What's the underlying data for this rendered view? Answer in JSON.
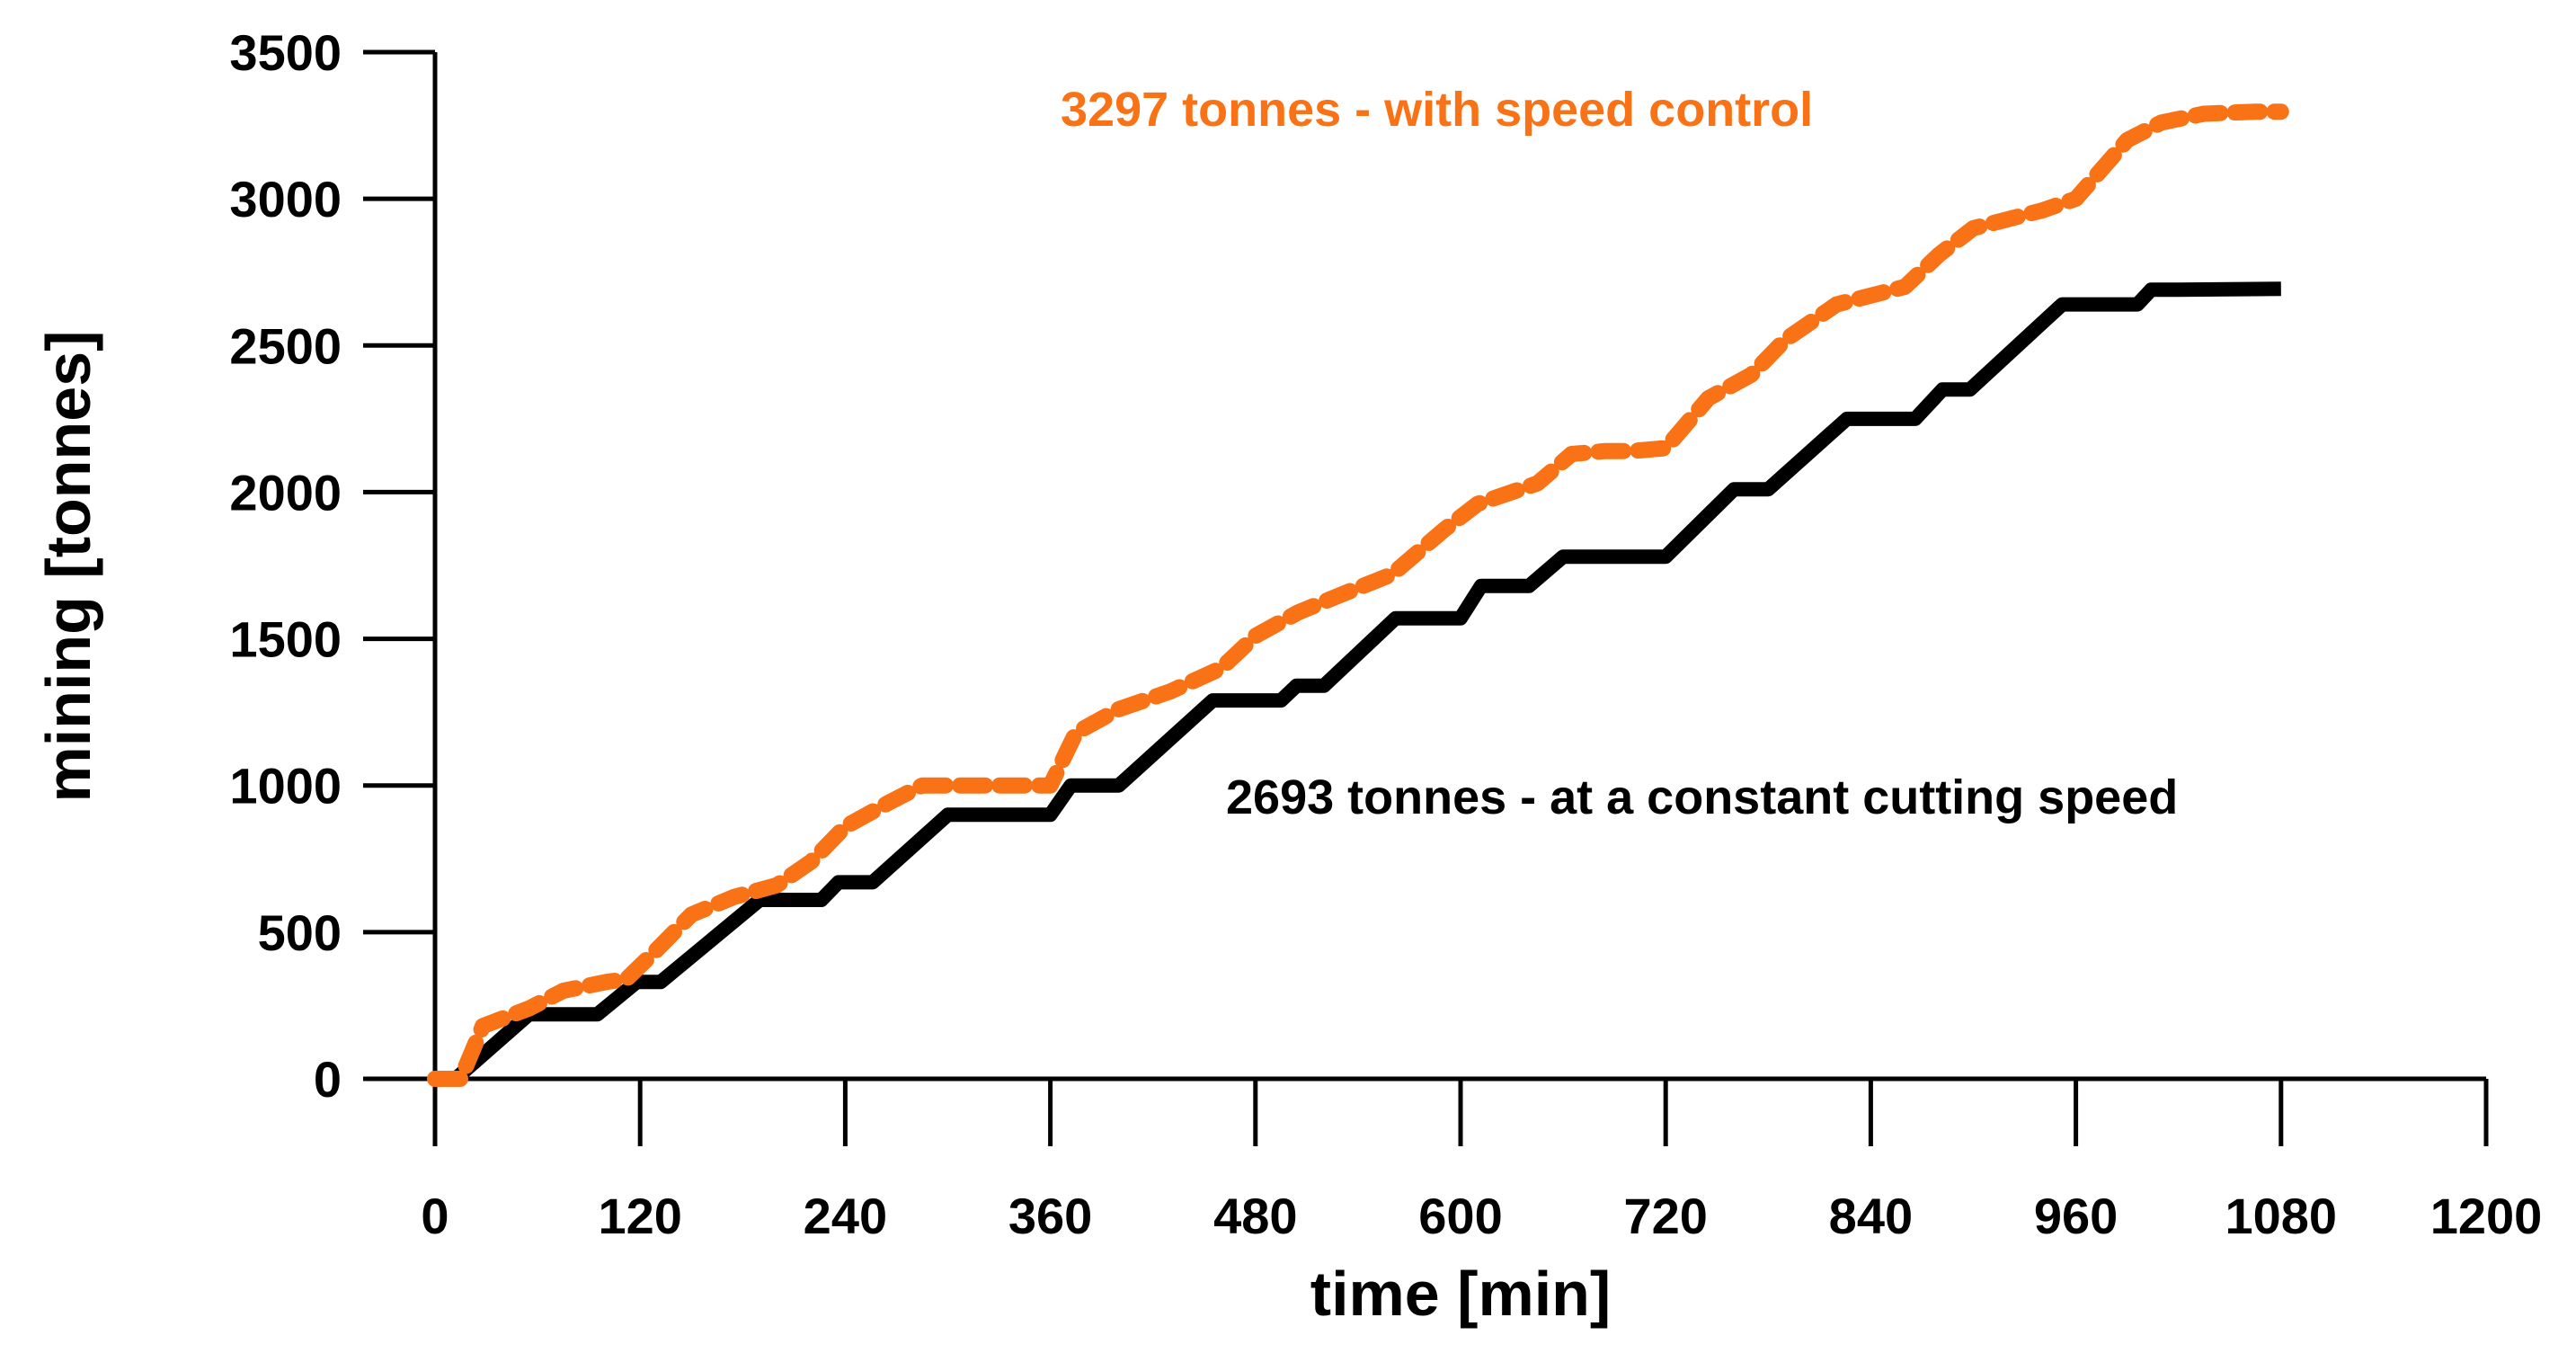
{
  "chart_data": {
    "type": "line",
    "title": "",
    "xlabel": "time [min]",
    "ylabel": "mining [tonnes]",
    "xlim": [
      0,
      1200
    ],
    "ylim": [
      0,
      3500
    ],
    "xticks": [
      0,
      120,
      240,
      360,
      480,
      600,
      720,
      840,
      960,
      1080,
      1200
    ],
    "yticks": [
      0,
      500,
      1000,
      1500,
      2000,
      2500,
      3000,
      3500
    ],
    "grid": false,
    "series": [
      {
        "name": "at a constant cutting speed",
        "color": "#000000",
        "style": "solid",
        "x": [
          12,
          55,
          95,
          118,
          132,
          190,
          226,
          236,
          256,
          300,
          360,
          372,
          386,
          400,
          455,
          495,
          504,
          520,
          562,
          600,
          612,
          624,
          640,
          660,
          720,
          760,
          780,
          826,
          866,
          882,
          898,
          952,
          996,
          1004,
          1020,
          1080
        ],
        "y": [
          0,
          220,
          220,
          330,
          330,
          610,
          610,
          670,
          670,
          900,
          900,
          1000,
          1000,
          1000,
          1290,
          1290,
          1340,
          1340,
          1570,
          1570,
          1680,
          1680,
          1680,
          1780,
          1780,
          2010,
          2010,
          2250,
          2250,
          2350,
          2350,
          2640,
          2640,
          2690,
          2690,
          2693
        ]
      },
      {
        "name": "with speed control",
        "color": "#f97316",
        "style": "dotted",
        "x": [
          0,
          15,
          28,
          55,
          75,
          100,
          112,
          128,
          150,
          175,
          200,
          220,
          240,
          265,
          285,
          300,
          330,
          360,
          375,
          400,
          430,
          460,
          480,
          505,
          530,
          560,
          590,
          610,
          645,
          665,
          685,
          700,
          720,
          745,
          770,
          790,
          820,
          860,
          880,
          900,
          940,
          960,
          990,
          1010,
          1035,
          1065,
          1080
        ],
        "y": [
          0,
          0,
          180,
          240,
          300,
          330,
          340,
          430,
          560,
          620,
          660,
          740,
          860,
          940,
          1000,
          1000,
          1000,
          1000,
          1180,
          1260,
          1320,
          1400,
          1510,
          1590,
          1650,
          1720,
          1870,
          1960,
          2030,
          2130,
          2140,
          2140,
          2150,
          2320,
          2400,
          2520,
          2640,
          2700,
          2810,
          2900,
          2960,
          3000,
          3200,
          3260,
          3290,
          3297,
          3297
        ]
      }
    ],
    "annotations": [
      {
        "text": "3297 tonnes -  with speed control",
        "color": "#f97316"
      },
      {
        "text": "2693 tonnes - at a constant cutting speed",
        "color": "#000000"
      }
    ]
  }
}
